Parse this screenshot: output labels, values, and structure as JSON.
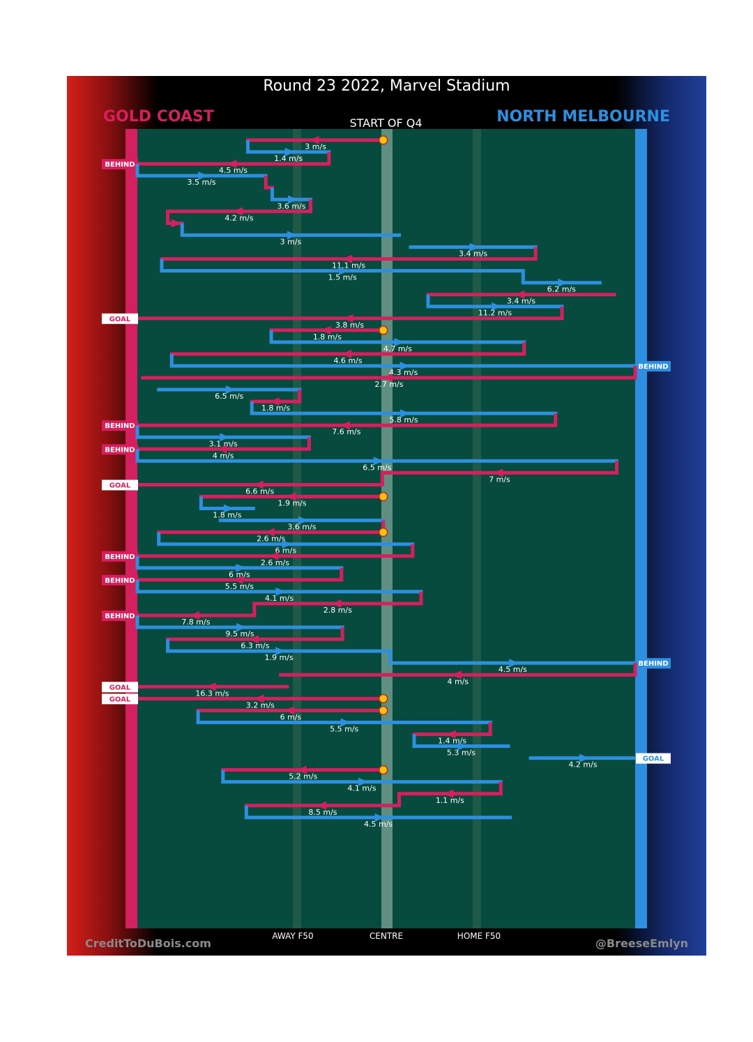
{
  "header": {
    "title": "Round 23 2022, Marvel Stadium",
    "team_left": "GOLD COAST",
    "team_right": "NORTH MELBOURNE",
    "period": "START OF Q4"
  },
  "footer": {
    "left": "CreditToDuBois.com",
    "right": "@BreeseEmlyn"
  },
  "colors": {
    "gold_coast": "#d61f5e",
    "north_melbourne": "#2d8fe0",
    "stoppage": "#f4c20d",
    "field": "#064b3d"
  },
  "chart_data": {
    "type": "line",
    "description_axis": [
      "AWAY F50",
      "CENTRE",
      "HOME F50"
    ],
    "xlim": [
      0,
      100
    ],
    "speed_unit": "m/s",
    "segments": [
      {
        "team": "GC",
        "from": 49.4,
        "to": 22.2,
        "speed": "3 m/s"
      },
      {
        "team": "NM",
        "from": 22.2,
        "to": 38.5,
        "speed": "1.4 m/s"
      },
      {
        "team": "GC",
        "from": 38.5,
        "to": 0,
        "speed": "4.5 m/s",
        "result": "BEHIND"
      },
      {
        "team": "NM",
        "from": 0,
        "to": 25.8,
        "speed": "3.5 m/s"
      },
      {
        "team": "GC",
        "from": 25.8,
        "to": 27.1,
        "speed": ""
      },
      {
        "team": "NM",
        "from": 27.1,
        "to": 34.8,
        "speed": "3.6 m/s"
      },
      {
        "team": "GC",
        "from": 34.8,
        "to": 6.1,
        "speed": "4.2 m/s"
      },
      {
        "team": "GC",
        "from": 6.1,
        "to": 9.0,
        "speed": ""
      },
      {
        "team": "NM",
        "from": 9.0,
        "to": 52.6,
        "speed": "3 m/s"
      },
      {
        "team": "NM",
        "from": 54.9,
        "to": 80.0,
        "speed": "3.4 m/s"
      },
      {
        "team": "GC",
        "from": 80.0,
        "to": 4.9,
        "speed": "11.1 m/s"
      },
      {
        "team": "NM",
        "from": 4.9,
        "to": 77.5,
        "speed": "1.5 m/s"
      },
      {
        "team": "NM",
        "from": 77.5,
        "to": 92.9,
        "speed": "6.2 m/s"
      },
      {
        "team": "GC",
        "from": 95.8,
        "to": 58.4,
        "speed": "3.4 m/s"
      },
      {
        "team": "NM",
        "from": 58.4,
        "to": 85.3,
        "speed": "11.2 m/s"
      },
      {
        "team": "GC",
        "from": 85.3,
        "to": 0,
        "speed": "3.8 m/s",
        "result": "GOAL"
      },
      {
        "team": "GC",
        "from": 49.4,
        "to": 26.9,
        "speed": "1.8 m/s"
      },
      {
        "team": "NM",
        "from": 26.9,
        "to": 77.7,
        "speed": "4.7 m/s"
      },
      {
        "team": "GC",
        "from": 77.7,
        "to": 6.9,
        "speed": "4.6 m/s"
      },
      {
        "team": "NM",
        "from": 6.9,
        "to": 100,
        "speed": "4.3 m/s",
        "result": "BEHIND"
      },
      {
        "team": "GC",
        "from": 100,
        "to": 1.1,
        "speed": "2.7 m/s"
      },
      {
        "team": "NM",
        "from": 4.3,
        "to": 32.6,
        "speed": "6.5 m/s"
      },
      {
        "team": "GC",
        "from": 32.6,
        "to": 23.0,
        "speed": "1.8 m/s"
      },
      {
        "team": "NM",
        "from": 23.0,
        "to": 84.0,
        "speed": "5.8 m/s"
      },
      {
        "team": "GC",
        "from": 84.0,
        "to": 0,
        "speed": "7.6 m/s",
        "result": "BEHIND"
      },
      {
        "team": "NM",
        "from": 0,
        "to": 34.5,
        "speed": "3.1 m/s"
      },
      {
        "team": "GC",
        "from": 34.5,
        "to": 0,
        "speed": "4 m/s",
        "result": "BEHIND"
      },
      {
        "team": "NM",
        "from": 0,
        "to": 96.3,
        "speed": "6.5 m/s"
      },
      {
        "team": "GC",
        "from": 96.3,
        "to": 49.2,
        "speed": "7 m/s"
      },
      {
        "team": "GC",
        "from": 49.2,
        "to": 0,
        "speed": "6.6 m/s",
        "result": "GOAL"
      },
      {
        "team": "GC",
        "from": 49.4,
        "to": 12.8,
        "speed": "1.9 m/s"
      },
      {
        "team": "NM",
        "from": 12.8,
        "to": 23.3,
        "speed": "1.8 m/s"
      },
      {
        "team": "NM",
        "from": 16.7,
        "to": 49.4,
        "speed": "3.6 m/s"
      },
      {
        "team": "GC",
        "from": 49.4,
        "to": 4.3,
        "speed": "2.6 m/s"
      },
      {
        "team": "NM",
        "from": 4.3,
        "to": 55.3,
        "speed": "6 m/s"
      },
      {
        "team": "GC",
        "from": 55.3,
        "to": 0,
        "speed": "2.6 m/s",
        "result": "BEHIND"
      },
      {
        "team": "NM",
        "from": 0,
        "to": 41.0,
        "speed": "6 m/s"
      },
      {
        "team": "GC",
        "from": 41.0,
        "to": 0,
        "speed": "5.5 m/s",
        "result": "BEHIND"
      },
      {
        "team": "NM",
        "from": 0,
        "to": 57.0,
        "speed": "4.1 m/s"
      },
      {
        "team": "GC",
        "from": 57.0,
        "to": 23.5,
        "speed": "2.8 m/s"
      },
      {
        "team": "GC",
        "from": 23.5,
        "to": 0,
        "speed": "7.8 m/s",
        "result": "BEHIND"
      },
      {
        "team": "NM",
        "from": 0,
        "to": 41.2,
        "speed": "9.5 m/s"
      },
      {
        "team": "GC",
        "from": 41.2,
        "to": 6.1,
        "speed": "6.3 m/s"
      },
      {
        "team": "NM",
        "from": 6.1,
        "to": 50.8,
        "speed": "1.9 m/s"
      },
      {
        "team": "NM",
        "from": 50.8,
        "to": 100,
        "speed": "4.5 m/s",
        "result": "BEHIND"
      },
      {
        "team": "GC",
        "from": 100,
        "to": 28.8,
        "speed": "4 m/s"
      },
      {
        "team": "GC",
        "from": 30.1,
        "to": 0,
        "speed": "16.3 m/s",
        "result": "GOAL"
      },
      {
        "team": "GC",
        "from": 49.4,
        "to": 0,
        "speed": "3.2 m/s",
        "result": "GOAL"
      },
      {
        "team": "GC",
        "from": 49.4,
        "to": 12.2,
        "speed": "6 m/s"
      },
      {
        "team": "NM",
        "from": 12.2,
        "to": 70.9,
        "speed": "5.5 m/s"
      },
      {
        "team": "GC",
        "from": 70.9,
        "to": 55.6,
        "speed": "1.4 m/s"
      },
      {
        "team": "NM",
        "from": 55.6,
        "to": 74.5,
        "speed": "5.3 m/s"
      },
      {
        "team": "NM",
        "from": 79.0,
        "to": 100,
        "speed": "4.2 m/s",
        "result": "GOAL"
      },
      {
        "team": "GC",
        "from": 49.4,
        "to": 17.2,
        "speed": "5.2 m/s"
      },
      {
        "team": "NM",
        "from": 17.2,
        "to": 73.0,
        "speed": "4.1 m/s"
      },
      {
        "team": "GC",
        "from": 73.0,
        "to": 52.6,
        "speed": "1.1 m/s"
      },
      {
        "team": "GC",
        "from": 52.6,
        "to": 21.9,
        "speed": "8.5 m/s"
      },
      {
        "team": "NM",
        "from": 21.9,
        "to": 74.9,
        "speed": "4.5 m/s"
      }
    ]
  }
}
